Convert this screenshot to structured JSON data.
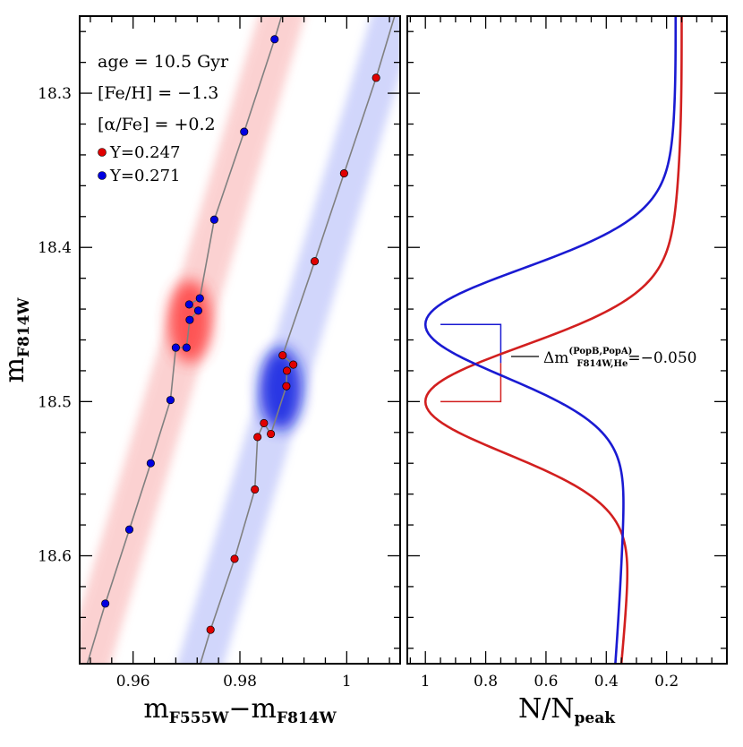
{
  "chart_data": [
    {
      "type": "scatter",
      "xlabel": "m_F555W − m_F814W",
      "xlabel_main": "m",
      "xlabel_sub1": "F555W",
      "xlabel_op": "−m",
      "xlabel_sub2": "F814W",
      "ylabel_main": "m",
      "ylabel_sub": "F814W",
      "xlim": [
        0.95,
        1.01
      ],
      "ylim": [
        18.67,
        18.25
      ],
      "xticks": [
        0.96,
        0.98,
        1.0
      ],
      "xtick_labels": [
        "0.96",
        "0.98",
        "1"
      ],
      "yticks": [
        18.3,
        18.4,
        18.5,
        18.6
      ],
      "ytick_labels": [
        "18.3",
        "18.4",
        "18.5",
        "18.6"
      ],
      "annotations": [
        "age = 10.5 Gyr",
        "[Fe/H] = −1.3",
        "[α/Fe] = +0.2"
      ],
      "series": [
        {
          "name": "Y=0.247",
          "color": "#e00000",
          "points": [
            [
              1.0055,
              18.29
            ],
            [
              0.9995,
              18.352
            ],
            [
              0.994,
              18.409
            ],
            [
              0.988,
              18.47
            ],
            [
              0.99,
              18.476
            ],
            [
              0.9888,
              18.48
            ],
            [
              0.9887,
              18.49
            ],
            [
              0.9858,
              18.521
            ],
            [
              0.9845,
              18.514
            ],
            [
              0.9833,
              18.523
            ],
            [
              0.9828,
              18.557
            ],
            [
              0.979,
              18.602
            ],
            [
              0.9745,
              18.648
            ]
          ]
        },
        {
          "name": "Y=0.271",
          "color": "#0000e0",
          "points": [
            [
              0.9865,
              18.265
            ],
            [
              0.9808,
              18.325
            ],
            [
              0.9752,
              18.382
            ],
            [
              0.9725,
              18.433
            ],
            [
              0.9705,
              18.437
            ],
            [
              0.9722,
              18.441
            ],
            [
              0.9706,
              18.447
            ],
            [
              0.97,
              18.465
            ],
            [
              0.968,
              18.465
            ],
            [
              0.967,
              18.499
            ],
            [
              0.9633,
              18.54
            ],
            [
              0.9593,
              18.583
            ],
            [
              0.9548,
              18.631
            ]
          ]
        }
      ]
    },
    {
      "type": "line",
      "xlabel_main": "N/N",
      "xlabel_sub": "peak",
      "xlim": [
        1.06,
        0.0
      ],
      "ylim": [
        18.67,
        18.25
      ],
      "xticks": [
        1.0,
        0.8,
        0.6,
        0.4,
        0.2
      ],
      "xtick_labels": [
        "1",
        "0.8",
        "0.6",
        "0.4",
        "0.2"
      ],
      "series": [
        {
          "name": "Y=0.247",
          "color": "#d21f1f",
          "peak_y": 18.5,
          "sigma": 0.034,
          "base": 0.31,
          "top_x": 0.15
        },
        {
          "name": "Y=0.271",
          "color": "#1a1ad2",
          "peak_y": 18.45,
          "sigma": 0.034,
          "base": 0.33,
          "top_x": 0.17
        }
      ],
      "delta_label_main": "Δm",
      "delta_label_sup": "(PopB,PopA)",
      "delta_label_sub": "F814W,He",
      "delta_label_value": "=−0.050"
    }
  ]
}
